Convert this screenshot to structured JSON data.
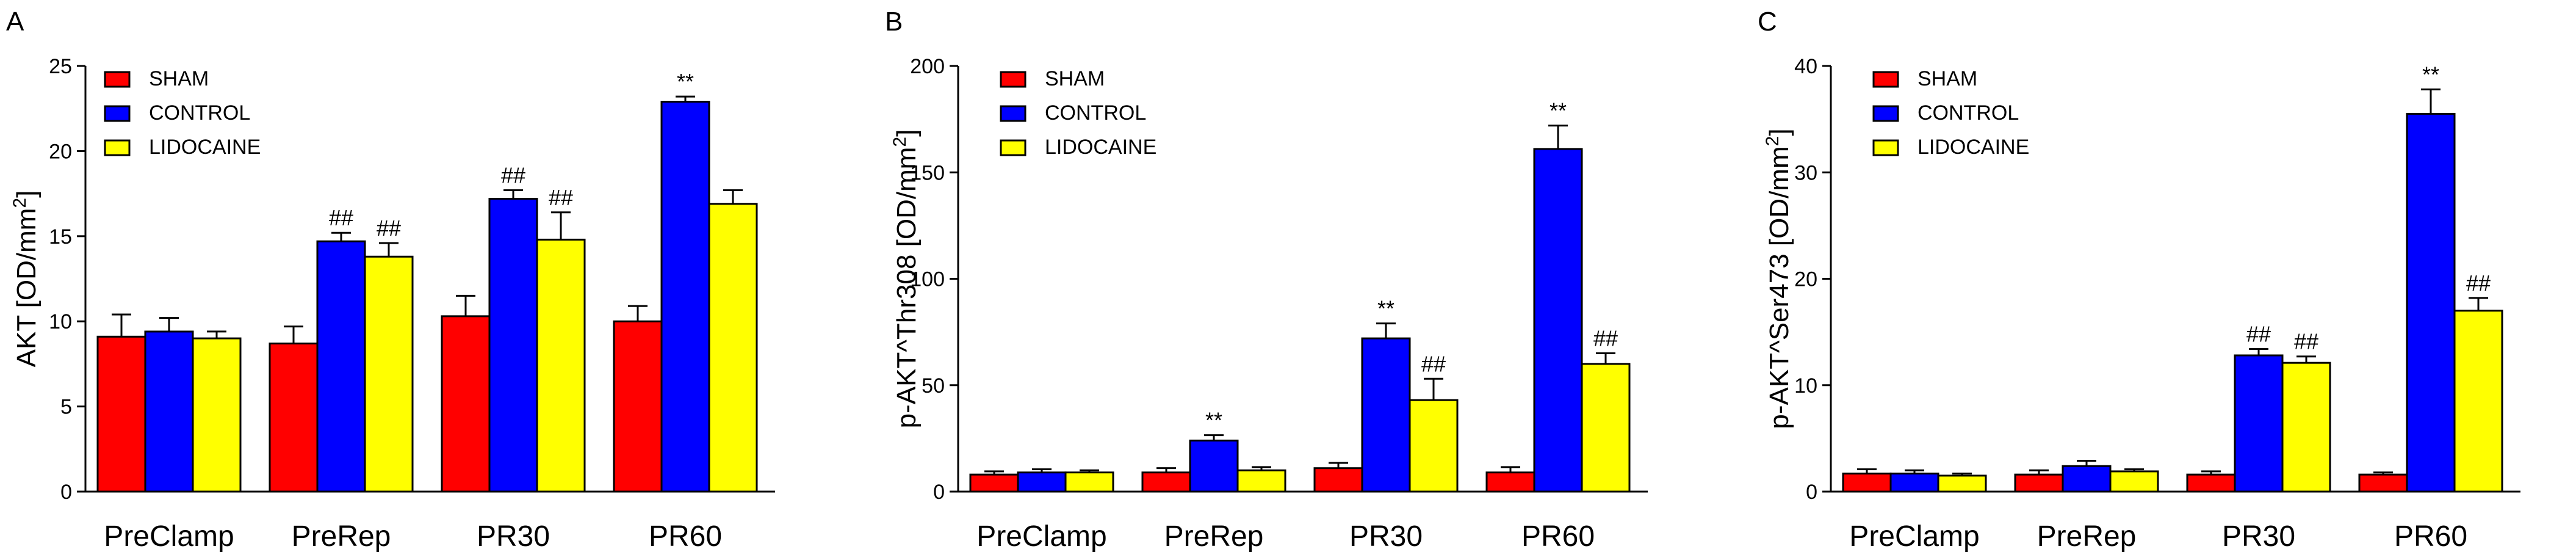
{
  "figure": {
    "colors": {
      "SHAM": "#ff0000",
      "CONTROL": "#0000ff",
      "LIDOCAINE": "#ffff00",
      "axis": "#000000"
    }
  },
  "chart_data": [
    {
      "panel": "A",
      "type": "bar",
      "ylabel_main": "AKT [OD/mm",
      "ylabel_sup": "2",
      "ylabel_end": "]",
      "ylim": [
        0,
        25
      ],
      "yticks": [
        0,
        5,
        10,
        15,
        20,
        25
      ],
      "categories": [
        "PreClamp",
        "PreRep",
        "PR30",
        "PR60"
      ],
      "legend": {
        "position": "top-left",
        "entries": [
          "SHAM",
          "CONTROL",
          "LIDOCAINE"
        ]
      },
      "series": [
        {
          "name": "SHAM",
          "color": "#ff0000",
          "values": [
            9.1,
            8.7,
            10.3,
            10.0
          ],
          "errors": [
            1.3,
            1.0,
            1.2,
            0.9
          ],
          "labels": [
            "",
            "",
            "",
            ""
          ]
        },
        {
          "name": "CONTROL",
          "color": "#0000ff",
          "values": [
            9.4,
            14.7,
            17.2,
            22.9
          ],
          "errors": [
            0.8,
            0.5,
            0.5,
            0.3
          ],
          "labels": [
            "",
            "##",
            "##",
            "**"
          ]
        },
        {
          "name": "LIDOCAINE",
          "color": "#ffff00",
          "values": [
            9.0,
            13.8,
            14.8,
            16.9
          ],
          "errors": [
            0.4,
            0.8,
            1.6,
            0.8
          ],
          "labels": [
            "",
            "##",
            "##",
            ""
          ]
        }
      ]
    },
    {
      "panel": "B",
      "type": "bar",
      "ylabel_main": "p-AKT^Thr308 [OD/mm",
      "ylabel_sup": "2",
      "ylabel_end": "]",
      "ylim": [
        0,
        200
      ],
      "yticks": [
        0,
        50,
        100,
        150,
        200
      ],
      "categories": [
        "PreClamp",
        "PreRep",
        "PR30",
        "PR60"
      ],
      "legend": {
        "position": "top-left",
        "entries": [
          "SHAM",
          "CONTROL",
          "LIDOCAINE"
        ]
      },
      "series": [
        {
          "name": "SHAM",
          "color": "#ff0000",
          "values": [
            8,
            9,
            11,
            9
          ],
          "errors": [
            1.5,
            2,
            2.5,
            2.5
          ],
          "labels": [
            "",
            "",
            "",
            ""
          ]
        },
        {
          "name": "CONTROL",
          "color": "#0000ff",
          "values": [
            9,
            24,
            72,
            161
          ],
          "errors": [
            1.5,
            2.5,
            7,
            11
          ],
          "labels": [
            "",
            "**",
            "**",
            "**"
          ]
        },
        {
          "name": "LIDOCAINE",
          "color": "#ffff00",
          "values": [
            9,
            10,
            43,
            60
          ],
          "errors": [
            1,
            1.5,
            10,
            5
          ],
          "labels": [
            "",
            "",
            "##",
            "##"
          ]
        }
      ]
    },
    {
      "panel": "C",
      "type": "bar",
      "ylabel_main": "p-AKT^Ser473 [OD/mm",
      "ylabel_sup": "2",
      "ylabel_end": "]",
      "ylim": [
        0,
        40
      ],
      "yticks": [
        0,
        10,
        20,
        30,
        40
      ],
      "categories": [
        "PreClamp",
        "PreRep",
        "PR30",
        "PR60"
      ],
      "legend": {
        "position": "top-left",
        "entries": [
          "SHAM",
          "CONTROL",
          "LIDOCAINE"
        ]
      },
      "series": [
        {
          "name": "SHAM",
          "color": "#ff0000",
          "values": [
            1.7,
            1.6,
            1.6,
            1.6
          ],
          "errors": [
            0.4,
            0.4,
            0.3,
            0.2
          ],
          "labels": [
            "",
            "",
            "",
            ""
          ]
        },
        {
          "name": "CONTROL",
          "color": "#0000ff",
          "values": [
            1.7,
            2.4,
            12.8,
            35.5
          ],
          "errors": [
            0.3,
            0.5,
            0.6,
            2.3
          ],
          "labels": [
            "",
            "",
            "##",
            "**"
          ]
        },
        {
          "name": "LIDOCAINE",
          "color": "#ffff00",
          "values": [
            1.5,
            1.9,
            12.1,
            17.0
          ],
          "errors": [
            0.2,
            0.2,
            0.6,
            1.2
          ],
          "labels": [
            "",
            "",
            "##",
            "##"
          ]
        }
      ]
    }
  ]
}
